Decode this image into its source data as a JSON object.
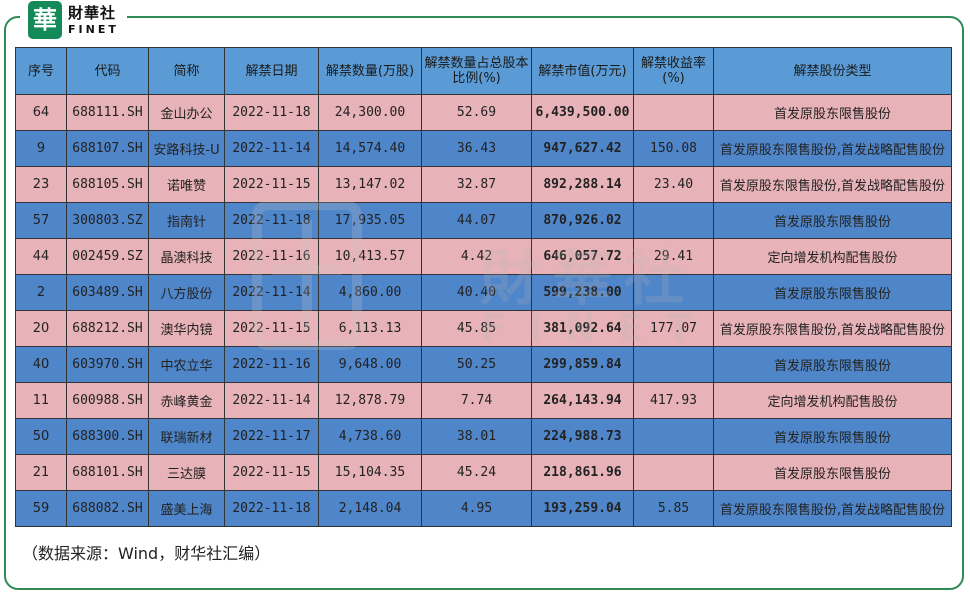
{
  "brand": {
    "mark": "華",
    "cn": "財華社",
    "en": "FINET"
  },
  "watermark": {
    "cn": "財華社",
    "en": "FINET"
  },
  "table": {
    "headers": [
      "序号",
      "代码",
      "简称",
      "解禁日期",
      "解禁数量(万股)",
      "解禁数量占总股本比例(%)",
      "解禁市值(万元)",
      "解禁收益率(%)",
      "解禁股份类型"
    ],
    "rows": [
      {
        "no": "64",
        "code": "688111.SH",
        "name": "金山办公",
        "date": "2022-11-18",
        "qty": "24,300.00",
        "ratio": "52.69",
        "value": "6,439,500.00",
        "yield": "",
        "type": "首发原股东限售股份",
        "color": "pink"
      },
      {
        "no": "9",
        "code": "688107.SH",
        "name": "安路科技-U",
        "date": "2022-11-14",
        "qty": "14,574.40",
        "ratio": "36.43",
        "value": "947,627.42",
        "yield": "150.08",
        "type": "首发原股东限售股份,首发战略配售股份",
        "color": "blue"
      },
      {
        "no": "23",
        "code": "688105.SH",
        "name": "诺唯赞",
        "date": "2022-11-15",
        "qty": "13,147.02",
        "ratio": "32.87",
        "value": "892,288.14",
        "yield": "23.40",
        "type": "首发原股东限售股份,首发战略配售股份",
        "color": "pink"
      },
      {
        "no": "57",
        "code": "300803.SZ",
        "name": "指南针",
        "date": "2022-11-18",
        "qty": "17,935.05",
        "ratio": "44.07",
        "value": "870,926.02",
        "yield": "",
        "type": "首发原股东限售股份",
        "color": "blue"
      },
      {
        "no": "44",
        "code": "002459.SZ",
        "name": "晶澳科技",
        "date": "2022-11-16",
        "qty": "10,413.57",
        "ratio": "4.42",
        "value": "646,057.72",
        "yield": "29.41",
        "type": "定向增发机构配售股份",
        "color": "pink"
      },
      {
        "no": "2",
        "code": "603489.SH",
        "name": "八方股份",
        "date": "2022-11-14",
        "qty": "4,860.00",
        "ratio": "40.40",
        "value": "599,238.00",
        "yield": "",
        "type": "首发原股东限售股份",
        "color": "blue"
      },
      {
        "no": "20",
        "code": "688212.SH",
        "name": "澳华内镜",
        "date": "2022-11-15",
        "qty": "6,113.13",
        "ratio": "45.85",
        "value": "381,092.64",
        "yield": "177.07",
        "type": "首发原股东限售股份,首发战略配售股份",
        "color": "pink"
      },
      {
        "no": "40",
        "code": "603970.SH",
        "name": "中农立华",
        "date": "2022-11-16",
        "qty": "9,648.00",
        "ratio": "50.25",
        "value": "299,859.84",
        "yield": "",
        "type": "首发原股东限售股份",
        "color": "blue"
      },
      {
        "no": "11",
        "code": "600988.SH",
        "name": "赤峰黄金",
        "date": "2022-11-14",
        "qty": "12,878.79",
        "ratio": "7.74",
        "value": "264,143.94",
        "yield": "417.93",
        "type": "定向增发机构配售股份",
        "color": "pink"
      },
      {
        "no": "50",
        "code": "688300.SH",
        "name": "联瑞新材",
        "date": "2022-11-17",
        "qty": "4,738.60",
        "ratio": "38.01",
        "value": "224,988.73",
        "yield": "",
        "type": "首发原股东限售股份",
        "color": "blue"
      },
      {
        "no": "21",
        "code": "688101.SH",
        "name": "三达膜",
        "date": "2022-11-15",
        "qty": "15,104.35",
        "ratio": "45.24",
        "value": "218,861.96",
        "yield": "",
        "type": "首发原股东限售股份",
        "color": "pink"
      },
      {
        "no": "59",
        "code": "688082.SH",
        "name": "盛美上海",
        "date": "2022-11-18",
        "qty": "2,148.04",
        "ratio": "4.95",
        "value": "193,259.04",
        "yield": "5.85",
        "type": "首发原股东限售股份,首发战略配售股份",
        "color": "blue"
      }
    ]
  },
  "source_note": "（数据来源：Wind，财华社汇编）",
  "colors": {
    "header": "#5b9bd5",
    "row_pink": "#e8b3b8",
    "row_blue": "#4f85c9",
    "frame": "#2e8b57"
  }
}
